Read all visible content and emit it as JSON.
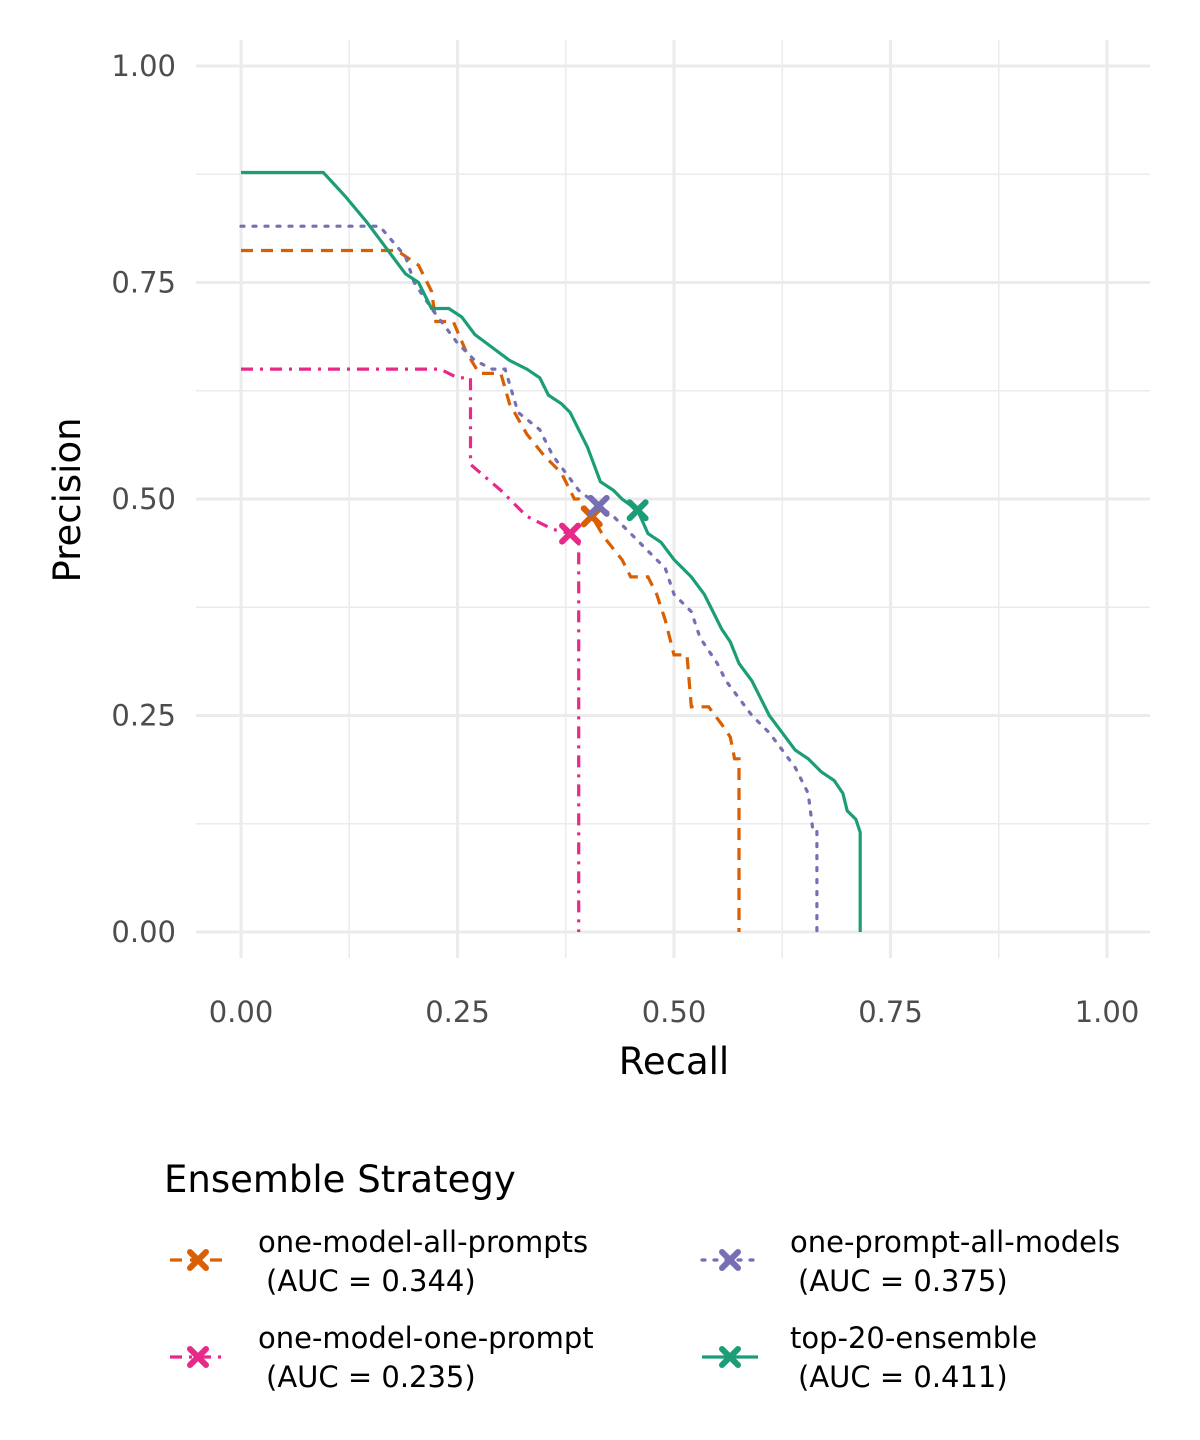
{
  "chart_data": {
    "type": "line",
    "xlabel": "Recall",
    "ylabel": "Precision",
    "xlim": [
      0,
      1.05
    ],
    "ylim": [
      -0.03,
      1.03
    ],
    "x_ticks": [
      0,
      0.25,
      0.5,
      0.75,
      1
    ],
    "y_ticks": [
      0,
      0.25,
      0.5,
      0.75,
      1
    ],
    "x_tick_labels": [
      "0.00",
      "0.25",
      "0.50",
      "0.75",
      "1.00"
    ],
    "y_tick_labels": [
      "0.00",
      "0.25",
      "0.50",
      "0.75",
      "1.00"
    ],
    "grid": true,
    "legend": {
      "title": "Ensemble Strategy",
      "position": "bottom"
    },
    "series": [
      {
        "name": "one-model-all-prompts",
        "auc_label": "(AUC = 0.344)",
        "color": "#d95f02",
        "dash": "dashed",
        "marker": [
          0.405,
          0.48
        ],
        "points": [
          [
            0,
            0.787
          ],
          [
            0.18,
            0.787
          ],
          [
            0.205,
            0.77
          ],
          [
            0.22,
            0.74
          ],
          [
            0.225,
            0.705
          ],
          [
            0.245,
            0.705
          ],
          [
            0.26,
            0.67
          ],
          [
            0.275,
            0.645
          ],
          [
            0.3,
            0.645
          ],
          [
            0.31,
            0.61
          ],
          [
            0.33,
            0.575
          ],
          [
            0.35,
            0.55
          ],
          [
            0.37,
            0.53
          ],
          [
            0.385,
            0.5
          ],
          [
            0.39,
            0.5
          ],
          [
            0.405,
            0.48
          ],
          [
            0.42,
            0.455
          ],
          [
            0.44,
            0.43
          ],
          [
            0.45,
            0.41
          ],
          [
            0.47,
            0.41
          ],
          [
            0.48,
            0.39
          ],
          [
            0.49,
            0.36
          ],
          [
            0.5,
            0.32
          ],
          [
            0.515,
            0.32
          ],
          [
            0.52,
            0.26
          ],
          [
            0.54,
            0.26
          ],
          [
            0.555,
            0.24
          ],
          [
            0.565,
            0.225
          ],
          [
            0.57,
            0.2
          ],
          [
            0.575,
            0.2
          ],
          [
            0.575,
            0
          ]
        ]
      },
      {
        "name": "one-prompt-all-models",
        "auc_label": "(AUC = 0.375)",
        "color": "#7570b3",
        "dash": "dotted",
        "marker": [
          0.413,
          0.492
        ],
        "points": [
          [
            0,
            0.815
          ],
          [
            0.16,
            0.815
          ],
          [
            0.19,
            0.78
          ],
          [
            0.2,
            0.75
          ],
          [
            0.22,
            0.72
          ],
          [
            0.25,
            0.68
          ],
          [
            0.27,
            0.66
          ],
          [
            0.29,
            0.65
          ],
          [
            0.305,
            0.65
          ],
          [
            0.32,
            0.6
          ],
          [
            0.345,
            0.58
          ],
          [
            0.36,
            0.55
          ],
          [
            0.375,
            0.53
          ],
          [
            0.39,
            0.51
          ],
          [
            0.413,
            0.492
          ],
          [
            0.43,
            0.48
          ],
          [
            0.45,
            0.46
          ],
          [
            0.47,
            0.44
          ],
          [
            0.49,
            0.42
          ],
          [
            0.5,
            0.39
          ],
          [
            0.52,
            0.37
          ],
          [
            0.53,
            0.34
          ],
          [
            0.55,
            0.31
          ],
          [
            0.56,
            0.29
          ],
          [
            0.575,
            0.27
          ],
          [
            0.59,
            0.25
          ],
          [
            0.61,
            0.23
          ],
          [
            0.625,
            0.21
          ],
          [
            0.64,
            0.19
          ],
          [
            0.655,
            0.16
          ],
          [
            0.66,
            0.12
          ],
          [
            0.665,
            0.12
          ],
          [
            0.665,
            0
          ]
        ]
      },
      {
        "name": "one-model-one-prompt",
        "auc_label": "(AUC = 0.235)",
        "color": "#e7298a",
        "dash": "dashdot",
        "marker": [
          0.38,
          0.46
        ],
        "points": [
          [
            0,
            0.65
          ],
          [
            0.23,
            0.65
          ],
          [
            0.25,
            0.64
          ],
          [
            0.265,
            0.64
          ],
          [
            0.265,
            0.54
          ],
          [
            0.3,
            0.51
          ],
          [
            0.33,
            0.48
          ],
          [
            0.36,
            0.465
          ],
          [
            0.38,
            0.46
          ],
          [
            0.39,
            0.45
          ],
          [
            0.39,
            0
          ]
        ]
      },
      {
        "name": "top-20-ensemble",
        "auc_label": "(AUC = 0.411)",
        "color": "#1b9e77",
        "dash": "solid",
        "marker": [
          0.458,
          0.487
        ],
        "points": [
          [
            0,
            0.877
          ],
          [
            0.095,
            0.877
          ],
          [
            0.12,
            0.85
          ],
          [
            0.145,
            0.82
          ],
          [
            0.16,
            0.8
          ],
          [
            0.175,
            0.78
          ],
          [
            0.19,
            0.76
          ],
          [
            0.205,
            0.75
          ],
          [
            0.22,
            0.72
          ],
          [
            0.24,
            0.72
          ],
          [
            0.255,
            0.71
          ],
          [
            0.27,
            0.69
          ],
          [
            0.29,
            0.675
          ],
          [
            0.31,
            0.66
          ],
          [
            0.33,
            0.65
          ],
          [
            0.345,
            0.64
          ],
          [
            0.355,
            0.62
          ],
          [
            0.37,
            0.61
          ],
          [
            0.38,
            0.6
          ],
          [
            0.39,
            0.58
          ],
          [
            0.4,
            0.56
          ],
          [
            0.415,
            0.52
          ],
          [
            0.43,
            0.51
          ],
          [
            0.44,
            0.5
          ],
          [
            0.458,
            0.487
          ],
          [
            0.47,
            0.46
          ],
          [
            0.485,
            0.45
          ],
          [
            0.5,
            0.43
          ],
          [
            0.51,
            0.42
          ],
          [
            0.52,
            0.41
          ],
          [
            0.535,
            0.39
          ],
          [
            0.545,
            0.37
          ],
          [
            0.555,
            0.35
          ],
          [
            0.565,
            0.335
          ],
          [
            0.575,
            0.31
          ],
          [
            0.59,
            0.29
          ],
          [
            0.6,
            0.27
          ],
          [
            0.61,
            0.25
          ],
          [
            0.625,
            0.23
          ],
          [
            0.64,
            0.21
          ],
          [
            0.655,
            0.2
          ],
          [
            0.67,
            0.185
          ],
          [
            0.685,
            0.175
          ],
          [
            0.695,
            0.16
          ],
          [
            0.7,
            0.14
          ],
          [
            0.71,
            0.13
          ],
          [
            0.715,
            0.115
          ],
          [
            0.715,
            0
          ]
        ]
      }
    ]
  }
}
